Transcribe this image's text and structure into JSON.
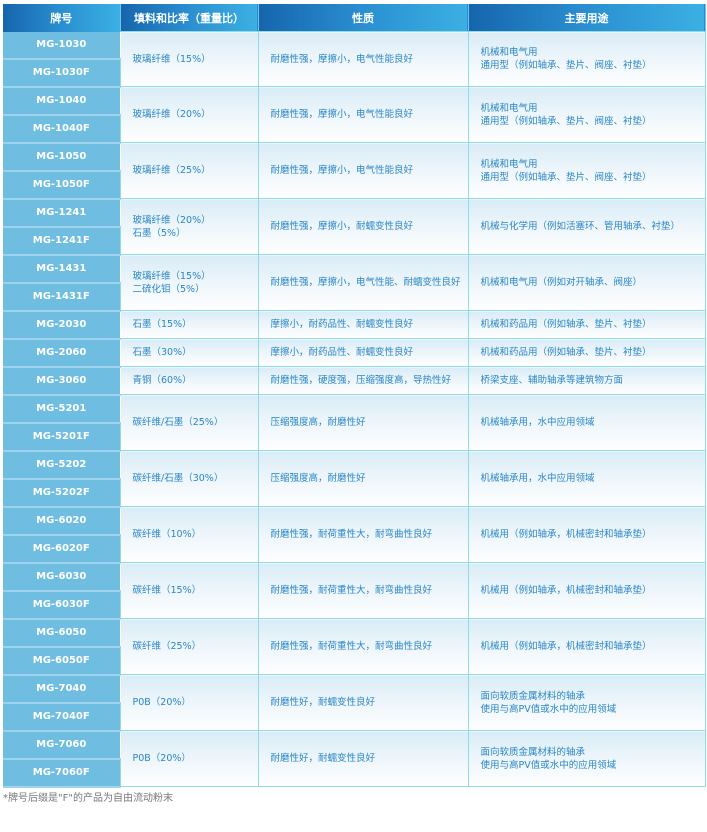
{
  "headers": [
    "牌号",
    "填料和比率（重量比）",
    "性质",
    "主要用途"
  ],
  "rows": [
    {
      "models": [
        "MG-1030",
        "MG-1030F"
      ],
      "filler": [
        "玻璃纤维（15%）"
      ],
      "props": [
        "耐磨性强，摩擦小，电气性能良好"
      ],
      "use": [
        "机械和电气用",
        "通用型（例如轴承、垫片、阀座、衬垫）"
      ]
    },
    {
      "models": [
        "MG-1040",
        "MG-1040F"
      ],
      "filler": [
        "玻璃纤维（20%）"
      ],
      "props": [
        "耐磨性强，摩擦小，电气性能良好"
      ],
      "use": [
        "机械和电气用",
        "通用型（例如轴承、垫片、阀座、衬垫）"
      ]
    },
    {
      "models": [
        "MG-1050",
        "MG-1050F"
      ],
      "filler": [
        "玻璃纤维（25%）"
      ],
      "props": [
        "耐磨性强，摩擦小，电气性能良好"
      ],
      "use": [
        "机械和电气用",
        "通用型（例如轴承、垫片、阀座、衬垫）"
      ]
    },
    {
      "models": [
        "MG-1241",
        "MG-1241F"
      ],
      "filler": [
        "玻璃纤维（20%）",
        "石墨（5%）"
      ],
      "props": [
        "耐磨性强，摩擦小，耐蠕变性良好"
      ],
      "use": [
        "机械与化学用（例如活塞环、管用轴承、衬垫）"
      ]
    },
    {
      "models": [
        "MG-1431",
        "MG-1431F"
      ],
      "filler": [
        "玻璃纤维（15%）",
        "二硫化钼（5%）"
      ],
      "props": [
        "耐磨性强，摩擦小，电气性能、耐蠕变性良好"
      ],
      "use": [
        "机械和电气用（例如对开轴承、阀座）"
      ]
    },
    {
      "models": [
        "MG-2030"
      ],
      "filler": [
        "石墨（15%）"
      ],
      "props": [
        "摩擦小，耐药品性、耐蠕变性良好"
      ],
      "use": [
        "机械和药品用（例如轴承、垫片、衬垫）"
      ]
    },
    {
      "models": [
        "MG-2060"
      ],
      "filler": [
        "石墨（30%）"
      ],
      "props": [
        "摩擦小，耐药品性、耐蠕变性良好"
      ],
      "use": [
        "机械和药品用（例如轴承、垫片、衬垫）"
      ]
    },
    {
      "models": [
        "MG-3060"
      ],
      "filler": [
        "青铜（60%）"
      ],
      "props": [
        "耐磨性强，硬度强，压缩强度高，导热性好"
      ],
      "use": [
        "桥梁支座、辅助轴承等建筑物方面"
      ]
    },
    {
      "models": [
        "MG-5201",
        "MG-5201F"
      ],
      "filler": [
        "碳纤维/石墨（25%）"
      ],
      "props": [
        "压缩强度高，耐磨性好"
      ],
      "use": [
        "机械轴承用，水中应用领域"
      ]
    },
    {
      "models": [
        "MG-5202",
        "MG-5202F"
      ],
      "filler": [
        "碳纤维/石墨（30%）"
      ],
      "props": [
        "压缩强度高，耐磨性好"
      ],
      "use": [
        "机械轴承用，水中应用领域"
      ]
    },
    {
      "models": [
        "MG-6020",
        "MG-6020F"
      ],
      "filler": [
        "碳纤维（10%）"
      ],
      "props": [
        "耐磨性强，耐荷重性大，耐弯曲性良好"
      ],
      "use": [
        "机械用（例如轴承，机械密封和轴承垫）"
      ]
    },
    {
      "models": [
        "MG-6030",
        "MG-6030F"
      ],
      "filler": [
        "碳纤维（15%）"
      ],
      "props": [
        "耐磨性强，耐荷重性大，耐弯曲性良好"
      ],
      "use": [
        "机械用（例如轴承，机械密封和轴承垫）"
      ]
    },
    {
      "models": [
        "MG-6050",
        "MG-6050F"
      ],
      "filler": [
        "碳纤维（25%）"
      ],
      "props": [
        "耐磨性强，耐荷重性大，耐弯曲性良好"
      ],
      "use": [
        "机械用（例如轴承，机械密封和轴承垫）"
      ]
    },
    {
      "models": [
        "MG-7040",
        "MG-7040F"
      ],
      "filler": [
        "P0B（20%）"
      ],
      "props": [
        "耐磨性好，耐蠕变性良好"
      ],
      "use": [
        "面向软质金属材料的轴承",
        "使用与高PV值或水中的应用领域"
      ]
    },
    {
      "models": [
        "MG-7060",
        "MG-7060F"
      ],
      "filler": [
        "P0B（20%）"
      ],
      "props": [
        "耐磨性好，耐蠕变性良好"
      ],
      "use": [
        "面向软质金属材料的轴承",
        "使用与高PV值或水中的应用领域"
      ]
    }
  ],
  "footnote": "*牌号后缀是\"F\"的产品为自由流动粉末",
  "colors": {
    "header": "#1665ad",
    "model_bg": "#6fbde0",
    "text": "#2a86c6",
    "border": "#8fdbe6"
  }
}
